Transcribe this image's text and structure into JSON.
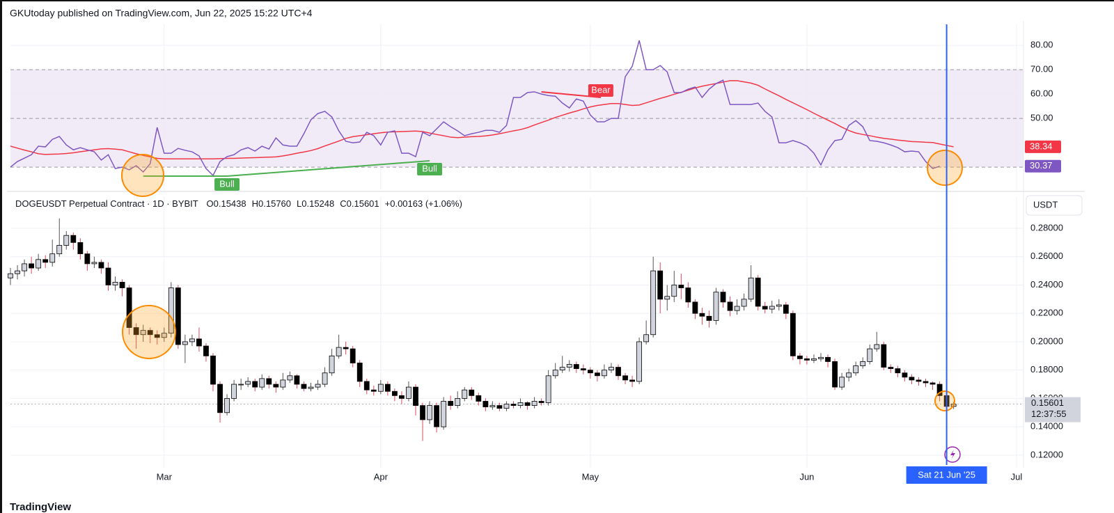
{
  "header": "GKUtoday published on TradingView.com, Jun 22, 2025 15:22 UTC+4",
  "footer": "TradingView",
  "chart_data": [
    {
      "type": "line",
      "xlim": [
        0,
        145
      ],
      "xticks": [
        22,
        53,
        83,
        114,
        144
      ],
      "ylim": [
        20.6,
        88.6
      ],
      "yticks": [
        {
          "value": 80,
          "label": "80.00"
        },
        {
          "value": 70,
          "label": "70.00"
        },
        {
          "value": 60,
          "label": "60.00"
        },
        {
          "value": 50,
          "label": "50.00"
        }
      ],
      "band": [
        30,
        70
      ],
      "band_color": "#ede7f6",
      "hlines": [
        70,
        50,
        30
      ],
      "series": [
        {
          "color": "#7e57c2",
          "values": [
            30.0,
            32.3,
            33.7,
            35.1,
            38.6,
            38.3,
            41.4,
            42.6,
            39.1,
            37.1,
            38.0,
            37.1,
            36.3,
            32.9,
            35.1,
            29.4,
            30.0,
            28.9,
            30.6,
            28.0,
            31.4,
            46.3,
            35.7,
            35.7,
            37.7,
            36.9,
            36.3,
            34.6,
            29.4,
            26.6,
            32.3,
            34.3,
            35.1,
            37.1,
            38.0,
            36.6,
            38.6,
            37.4,
            42.0,
            39.1,
            38.6,
            38.6,
            43.7,
            49.4,
            52.0,
            52.9,
            50.6,
            44.9,
            40.6,
            40.0,
            40.3,
            44.3,
            42.9,
            39.1,
            44.3,
            44.9,
            35.7,
            35.7,
            34.3,
            44.3,
            42.9,
            45.7,
            48.6,
            46.6,
            44.9,
            42.9,
            43.7,
            44.3,
            45.1,
            45.1,
            44.3,
            47.1,
            58.6,
            58.6,
            60.6,
            60.9,
            60.0,
            59.4,
            59.1,
            56.3,
            54.3,
            58.0,
            57.1,
            51.4,
            48.6,
            48.6,
            50.0,
            50.0,
            67.1,
            71.4,
            82.0,
            70.0,
            70.0,
            71.7,
            69.1,
            60.6,
            60.6,
            62.0,
            62.9,
            58.6,
            62.0,
            64.3,
            65.7,
            55.7,
            55.7,
            55.7,
            55.7,
            56.3,
            52.9,
            50.6,
            40.0,
            40.0,
            40.9,
            40.0,
            38.6,
            35.7,
            30.9,
            37.1,
            40.9,
            41.4,
            47.1,
            49.1,
            46.6,
            40.9,
            40.6,
            40.0,
            39.1,
            38.0,
            36.3,
            36.6,
            36.3,
            32.3,
            29.4,
            30.37
          ]
        },
        {
          "color": "#f23645",
          "values": [
            38.6,
            37.8,
            37.0,
            36.3,
            35.5,
            35.2,
            35.3,
            35.4,
            35.6,
            35.9,
            36.3,
            36.7,
            37.1,
            37.5,
            37.6,
            37.4,
            37.1,
            36.3,
            35.5,
            34.8,
            34.2,
            33.6,
            33.4,
            33.4,
            33.4,
            33.4,
            33.4,
            33.4,
            33.4,
            33.4,
            33.5,
            33.6,
            33.6,
            33.7,
            33.8,
            33.9,
            34.0,
            34.1,
            34.2,
            34.6,
            35.1,
            35.7,
            36.2,
            36.8,
            37.6,
            38.7,
            39.7,
            40.7,
            41.8,
            42.5,
            42.9,
            43.3,
            43.7,
            44.1,
            44.4,
            44.5,
            44.6,
            44.7,
            44.8,
            44.6,
            44.0,
            43.4,
            42.9,
            42.3,
            42.1,
            42.3,
            42.5,
            42.6,
            42.8,
            43.2,
            43.7,
            44.3,
            44.9,
            45.4,
            46.2,
            47.3,
            48.3,
            49.3,
            50.4,
            51.3,
            52.2,
            53.0,
            53.9,
            54.7,
            55.3,
            55.7,
            56.1,
            56.1,
            55.7,
            55.3,
            55.5,
            56.4,
            57.3,
            58.2,
            59.0,
            59.9,
            60.7,
            61.6,
            62.5,
            63.2,
            63.8,
            64.3,
            64.9,
            65.5,
            65.5,
            65.0,
            64.5,
            63.6,
            62.1,
            60.7,
            59.3,
            57.8,
            56.4,
            55.0,
            53.6,
            52.1,
            50.7,
            49.3,
            47.9,
            46.4,
            45.0,
            44.0,
            43.4,
            42.9,
            42.3,
            41.8,
            41.5,
            41.1,
            40.8,
            40.5,
            40.4,
            40.2,
            40.1,
            39.5,
            38.9,
            38.34
          ]
        }
      ],
      "annotations": [
        {
          "text": "Bear",
          "color": "#f23645",
          "from": [
            76,
            60.9
          ],
          "to": [
            84.5,
            58.6
          ]
        },
        {
          "text": "Bull",
          "color": "#4caf50",
          "from": [
            19,
            26.3
          ],
          "to": [
            31,
            26.3
          ]
        },
        {
          "text": "Bull",
          "color": "#4caf50",
          "from": [
            31,
            26.3
          ],
          "to": [
            60,
            32.6
          ]
        }
      ]
    },
    {
      "type": "candlestick",
      "title": "DOGEUSDT Perpetual Contract · 1D · BYBIT",
      "ohlc_prefixes": [
        "O",
        "H",
        "L",
        "C"
      ],
      "last_bar_labels": {
        "open": "0.15438",
        "high": "0.15760",
        "low": "0.15248",
        "close": "0.15601",
        "change": "+0.00163 (+1.06%)"
      },
      "currency": "USDT",
      "countdown": "12:37:55",
      "crosshair": {
        "x": 134,
        "label": "Sat 21 Jun '25",
        "color": "#2962ff"
      },
      "up_color": "#d1d4dc",
      "down_color": "#000000",
      "wick_color": "#e0475a",
      "xlim": [
        0,
        145
      ],
      "xticks": [
        {
          "value": 22,
          "label": "Mar"
        },
        {
          "value": 53,
          "label": "Apr"
        },
        {
          "value": 83,
          "label": "May"
        },
        {
          "value": 114,
          "label": "Jun"
        },
        {
          "value": 144,
          "label": "Jul"
        }
      ],
      "ylim": [
        0.1111,
        0.3021
      ],
      "yticks": [
        {
          "value": 0.28,
          "label": "0.28000"
        },
        {
          "value": 0.26,
          "label": "0.26000"
        },
        {
          "value": 0.24,
          "label": "0.24000"
        },
        {
          "value": 0.22,
          "label": "0.22000"
        },
        {
          "value": 0.2,
          "label": "0.20000"
        },
        {
          "value": 0.18,
          "label": "0.18000"
        },
        {
          "value": 0.16,
          "label": "0.16000"
        },
        {
          "value": 0.14,
          "label": "0.14000"
        },
        {
          "value": 0.12,
          "label": "0.12000"
        }
      ],
      "open": [
        0.245,
        0.248,
        0.25,
        0.255,
        0.252,
        0.258,
        0.256,
        0.262,
        0.268,
        0.275,
        0.27,
        0.262,
        0.255,
        0.256,
        0.252,
        0.24,
        0.242,
        0.238,
        0.21,
        0.205,
        0.208,
        0.205,
        0.203,
        0.206,
        0.238,
        0.198,
        0.2,
        0.202,
        0.197,
        0.19,
        0.17,
        0.15,
        0.16,
        0.17,
        0.17,
        0.172,
        0.168,
        0.174,
        0.17,
        0.168,
        0.173,
        0.176,
        0.17,
        0.167,
        0.168,
        0.17,
        0.178,
        0.19,
        0.196,
        0.195,
        0.185,
        0.172,
        0.166,
        0.165,
        0.17,
        0.165,
        0.162,
        0.16,
        0.168,
        0.155,
        0.145,
        0.155,
        0.14,
        0.158,
        0.155,
        0.16,
        0.166,
        0.162,
        0.158,
        0.154,
        0.155,
        0.153,
        0.156,
        0.155,
        0.157,
        0.155,
        0.158,
        0.157,
        0.176,
        0.18,
        0.182,
        0.184,
        0.181,
        0.18,
        0.178,
        0.176,
        0.18,
        0.182,
        0.176,
        0.173,
        0.172,
        0.2,
        0.205,
        0.25,
        0.23,
        0.232,
        0.24,
        0.238,
        0.228,
        0.22,
        0.218,
        0.215,
        0.235,
        0.228,
        0.222,
        0.225,
        0.23,
        0.245,
        0.225,
        0.223,
        0.225,
        0.226,
        0.22,
        0.19,
        0.188,
        0.187,
        0.188,
        0.189,
        0.186,
        0.168,
        0.175,
        0.178,
        0.183,
        0.186,
        0.195,
        0.198,
        0.182,
        0.181,
        0.178,
        0.175,
        0.173,
        0.172,
        0.171,
        0.17,
        0.162,
        0.15438
      ],
      "high": [
        0.252,
        0.254,
        0.258,
        0.26,
        0.262,
        0.261,
        0.272,
        0.287,
        0.278,
        0.277,
        0.273,
        0.264,
        0.26,
        0.258,
        0.256,
        0.246,
        0.244,
        0.24,
        0.213,
        0.212,
        0.21,
        0.208,
        0.21,
        0.242,
        0.24,
        0.205,
        0.205,
        0.21,
        0.199,
        0.192,
        0.172,
        0.163,
        0.173,
        0.174,
        0.175,
        0.174,
        0.177,
        0.176,
        0.172,
        0.178,
        0.179,
        0.177,
        0.172,
        0.171,
        0.173,
        0.182,
        0.195,
        0.205,
        0.2,
        0.197,
        0.187,
        0.174,
        0.169,
        0.173,
        0.172,
        0.167,
        0.165,
        0.172,
        0.17,
        0.157,
        0.158,
        0.157,
        0.161,
        0.162,
        0.165,
        0.168,
        0.168,
        0.164,
        0.16,
        0.158,
        0.157,
        0.158,
        0.158,
        0.16,
        0.158,
        0.161,
        0.16,
        0.18,
        0.185,
        0.19,
        0.187,
        0.186,
        0.184,
        0.182,
        0.18,
        0.184,
        0.185,
        0.184,
        0.178,
        0.176,
        0.203,
        0.215,
        0.26,
        0.256,
        0.24,
        0.25,
        0.248,
        0.242,
        0.23,
        0.224,
        0.222,
        0.238,
        0.237,
        0.232,
        0.23,
        0.234,
        0.254,
        0.247,
        0.228,
        0.229,
        0.23,
        0.228,
        0.222,
        0.192,
        0.19,
        0.191,
        0.192,
        0.191,
        0.188,
        0.178,
        0.181,
        0.186,
        0.189,
        0.198,
        0.207,
        0.2,
        0.184,
        0.183,
        0.18,
        0.177,
        0.175,
        0.174,
        0.172,
        0.172,
        0.165,
        0.1576
      ],
      "low": [
        0.24,
        0.244,
        0.246,
        0.248,
        0.25,
        0.252,
        0.253,
        0.26,
        0.265,
        0.265,
        0.258,
        0.25,
        0.252,
        0.248,
        0.236,
        0.236,
        0.232,
        0.205,
        0.195,
        0.2,
        0.199,
        0.198,
        0.2,
        0.203,
        0.195,
        0.185,
        0.197,
        0.193,
        0.186,
        0.165,
        0.143,
        0.148,
        0.158,
        0.166,
        0.168,
        0.165,
        0.166,
        0.167,
        0.164,
        0.166,
        0.171,
        0.167,
        0.165,
        0.165,
        0.166,
        0.168,
        0.176,
        0.188,
        0.191,
        0.182,
        0.168,
        0.163,
        0.162,
        0.163,
        0.162,
        0.158,
        0.156,
        0.158,
        0.148,
        0.13,
        0.142,
        0.136,
        0.138,
        0.152,
        0.153,
        0.158,
        0.159,
        0.155,
        0.151,
        0.152,
        0.151,
        0.151,
        0.153,
        0.153,
        0.152,
        0.153,
        0.155,
        0.155,
        0.174,
        0.178,
        0.179,
        0.178,
        0.177,
        0.174,
        0.172,
        0.174,
        0.178,
        0.173,
        0.17,
        0.168,
        0.17,
        0.198,
        0.203,
        0.22,
        0.222,
        0.228,
        0.23,
        0.224,
        0.216,
        0.212,
        0.21,
        0.212,
        0.224,
        0.218,
        0.219,
        0.222,
        0.228,
        0.222,
        0.22,
        0.22,
        0.222,
        0.216,
        0.187,
        0.184,
        0.184,
        0.185,
        0.186,
        0.182,
        0.166,
        0.166,
        0.172,
        0.176,
        0.181,
        0.184,
        0.193,
        0.18,
        0.178,
        0.175,
        0.172,
        0.17,
        0.169,
        0.168,
        0.166,
        0.158,
        0.152,
        0.15248
      ],
      "close": [
        0.248,
        0.25,
        0.255,
        0.252,
        0.258,
        0.256,
        0.262,
        0.268,
        0.275,
        0.27,
        0.262,
        0.255,
        0.256,
        0.252,
        0.24,
        0.242,
        0.238,
        0.21,
        0.205,
        0.208,
        0.205,
        0.203,
        0.206,
        0.238,
        0.198,
        0.2,
        0.202,
        0.197,
        0.19,
        0.17,
        0.15,
        0.16,
        0.17,
        0.17,
        0.172,
        0.168,
        0.174,
        0.17,
        0.168,
        0.173,
        0.176,
        0.17,
        0.167,
        0.168,
        0.17,
        0.178,
        0.19,
        0.196,
        0.195,
        0.185,
        0.172,
        0.166,
        0.165,
        0.17,
        0.165,
        0.162,
        0.16,
        0.168,
        0.155,
        0.145,
        0.155,
        0.14,
        0.158,
        0.155,
        0.16,
        0.166,
        0.162,
        0.158,
        0.154,
        0.155,
        0.153,
        0.156,
        0.155,
        0.157,
        0.155,
        0.158,
        0.157,
        0.176,
        0.18,
        0.182,
        0.184,
        0.181,
        0.18,
        0.178,
        0.176,
        0.18,
        0.182,
        0.176,
        0.173,
        0.172,
        0.2,
        0.205,
        0.25,
        0.23,
        0.232,
        0.24,
        0.238,
        0.228,
        0.22,
        0.218,
        0.215,
        0.235,
        0.228,
        0.222,
        0.225,
        0.23,
        0.245,
        0.225,
        0.223,
        0.225,
        0.226,
        0.22,
        0.19,
        0.188,
        0.187,
        0.188,
        0.189,
        0.186,
        0.168,
        0.175,
        0.178,
        0.183,
        0.186,
        0.195,
        0.198,
        0.182,
        0.181,
        0.178,
        0.175,
        0.173,
        0.172,
        0.171,
        0.17,
        0.162,
        0.15438,
        0.15601
      ]
    }
  ]
}
